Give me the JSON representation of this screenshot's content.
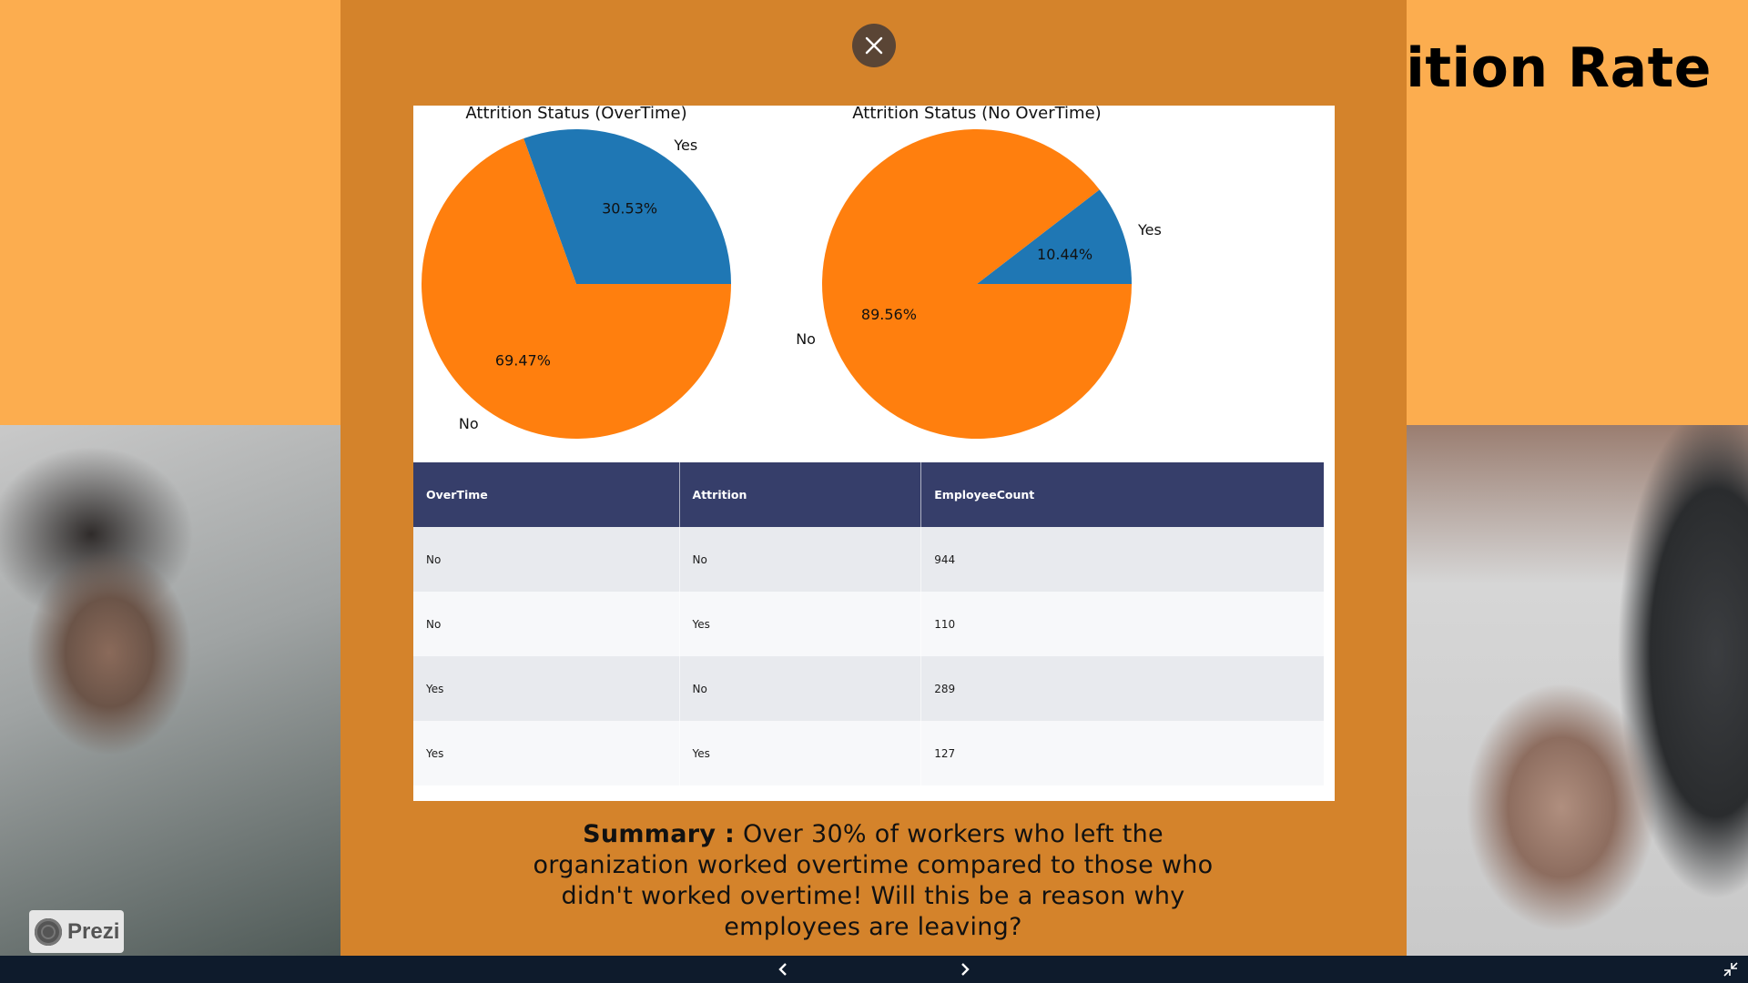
{
  "page_title": "Attrition Rate",
  "chart_data": [
    {
      "type": "pie",
      "title": "Attrition Status (OverTime)",
      "labels": [
        "Yes",
        "No"
      ],
      "values": [
        30.53,
        69.47
      ],
      "value_labels": [
        "30.53%",
        "69.47%"
      ],
      "colors": [
        "#1F77B4",
        "#FF7F0E"
      ]
    },
    {
      "type": "pie",
      "title": "Attrition Status (No OverTime)",
      "labels": [
        "Yes",
        "No"
      ],
      "values": [
        10.44,
        89.56
      ],
      "value_labels": [
        "10.44%",
        "89.56%"
      ],
      "colors": [
        "#1F77B4",
        "#FF7F0E"
      ]
    }
  ],
  "table": {
    "columns": [
      "OverTime",
      "Attrition",
      "EmployeeCount"
    ],
    "rows": [
      [
        "No",
        "No",
        "944"
      ],
      [
        "No",
        "Yes",
        "110"
      ],
      [
        "Yes",
        "No",
        "289"
      ],
      [
        "Yes",
        "Yes",
        "127"
      ]
    ]
  },
  "summary": {
    "label": "Summary :",
    "text": "Over 30% of workers who left the organization worked overtime compared to those who didn't worked overtime! Will this be a reason why employees are leaving?"
  },
  "branding": {
    "prezi_label": "Prezi"
  },
  "icons": {
    "close": "close-icon",
    "prev": "chevron-left-icon",
    "next": "chevron-right-icon",
    "fullscreen": "exit-fullscreen-icon"
  },
  "colors": {
    "background_orange": "#FCAD4F",
    "modal_orange": "#D4832B",
    "table_header": "#363E6A",
    "bottom_bar": "#0E1B2C"
  }
}
